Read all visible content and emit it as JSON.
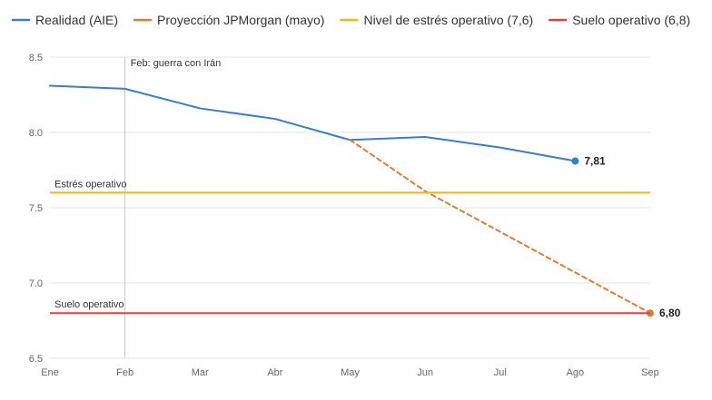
{
  "chart_data": {
    "type": "line",
    "categories": [
      "Ene",
      "Feb",
      "Mar",
      "Abr",
      "May",
      "Jun",
      "Jul",
      "Ago",
      "Sep"
    ],
    "ylim": [
      6.5,
      8.5
    ],
    "yticks": [
      "6.5",
      "7.0",
      "7.5",
      "8.0",
      "8.5"
    ],
    "grid": true,
    "legend_position": "top",
    "series": [
      {
        "name": "Realidad (AIE)",
        "color": "#3a7dc9",
        "style": "solid",
        "points": [
          [
            "Ene",
            8.31
          ],
          [
            "Feb",
            8.29
          ],
          [
            "Mar",
            8.16
          ],
          [
            "Abr",
            8.09
          ],
          [
            "May",
            7.95
          ],
          [
            "Jun",
            7.97
          ],
          [
            "Jul",
            7.9
          ],
          [
            "Ago",
            7.81
          ]
        ],
        "end_label": "7,81"
      },
      {
        "name": "Proyección JPMorgan (mayo)",
        "color": "#e07b39",
        "style": "dashed",
        "points": [
          [
            "May",
            7.95
          ],
          [
            "Jun",
            7.61
          ],
          [
            "Jul",
            7.34
          ],
          [
            "Ago",
            7.07
          ],
          [
            "Sep",
            6.8
          ]
        ],
        "end_label": "6,80"
      },
      {
        "name": "Nivel de estrés operativo (7,6)",
        "color": "#f2b51c",
        "style": "solid",
        "constant": 7.6,
        "annotation": "Estrés operativo"
      },
      {
        "name": "Suelo operativo (6,8)",
        "color": "#d64541",
        "style": "solid",
        "constant": 6.8,
        "annotation": "Suelo operativo"
      }
    ],
    "event_line": {
      "x": "Feb",
      "label": "Feb: guerra con Irán",
      "color": "#c9c9b0"
    }
  }
}
